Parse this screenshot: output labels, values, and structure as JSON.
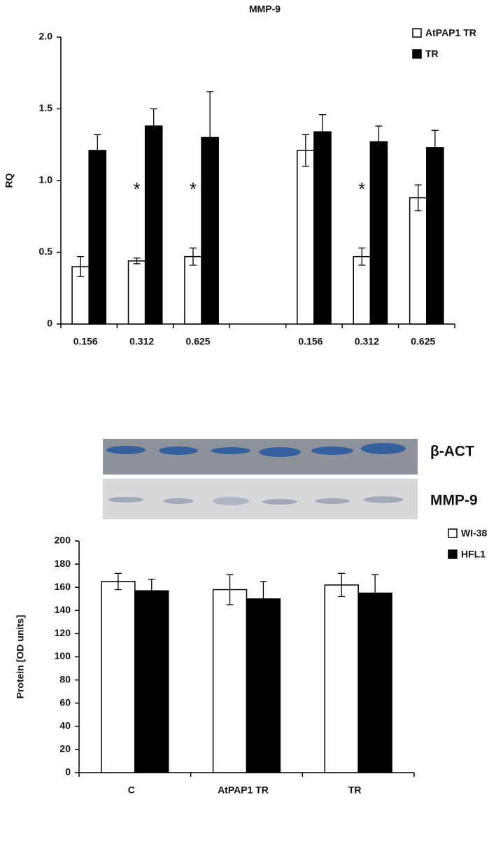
{
  "chart_data": [
    {
      "type": "bar",
      "title": "MMP-9",
      "y_label": "RQ",
      "categories": [
        "0.156",
        "0.312",
        "0.625",
        null,
        "0.156",
        "0.312",
        "0.625"
      ],
      "series": [
        {
          "name": "AtPAP1 TR",
          "color": "#ffffff",
          "values": [
            0.4,
            0.44,
            0.47,
            null,
            1.21,
            0.47,
            0.88
          ],
          "errors": [
            0.07,
            0.02,
            0.06,
            null,
            0.11,
            0.06,
            0.09
          ]
        },
        {
          "name": "TR",
          "color": "#000000",
          "values": [
            1.21,
            1.38,
            1.3,
            null,
            1.34,
            1.27,
            1.23
          ],
          "errors": [
            0.11,
            0.12,
            0.32,
            null,
            0.12,
            0.11,
            0.12
          ]
        }
      ],
      "annotations": [
        {
          "text": "*",
          "category": 1
        },
        {
          "text": "*",
          "category": 2
        },
        {
          "text": "*",
          "category": 5
        }
      ],
      "ylim": [
        0,
        2
      ],
      "yticks": [
        0,
        0.5,
        {
          "value": 1,
          "label": "1.0"
        },
        1.5,
        {
          "value": 2,
          "label": "2.0"
        }
      ],
      "legend": "top-right"
    },
    {
      "type": "bar",
      "y_label": "Protein [OD units]",
      "categories": [
        "C",
        "AtPAP1 TR",
        "TR"
      ],
      "series": [
        {
          "name": "WI-38",
          "color": "#ffffff",
          "values": [
            165,
            158,
            162
          ],
          "errors": [
            7,
            13,
            10
          ]
        },
        {
          "name": "HFL1",
          "color": "#000000",
          "values": [
            157,
            150,
            155
          ],
          "errors": [
            10,
            15,
            16
          ]
        }
      ],
      "ylim": [
        0,
        200
      ],
      "yticks": [
        0,
        20,
        40,
        60,
        80,
        100,
        120,
        140,
        160,
        180,
        200
      ],
      "legend": "right"
    }
  ],
  "blot": {
    "labels": [
      "β-ACT",
      "MMP-9"
    ]
  }
}
